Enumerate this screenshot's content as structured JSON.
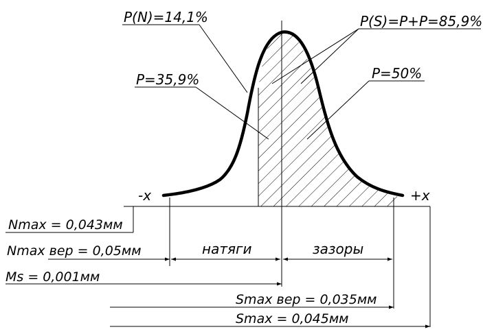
{
  "labels": {
    "p_n": "P(N)=14,1%",
    "p_s": "P(S)=P+P=85,9%",
    "p_35": "P=35,9%",
    "p_50": "P=50%",
    "minus_x": "-x",
    "plus_x": "+x",
    "nmax": "Nmax = 0,043мм",
    "nmax_ver": "Nmax вер = 0,05мм",
    "ms": "Ms = 0,001мм",
    "smax_ver": "Smax вер = 0,035мм",
    "smax": "Smax = 0,045мм",
    "natyagi": "натяги",
    "zazory": "зазоры"
  }
}
